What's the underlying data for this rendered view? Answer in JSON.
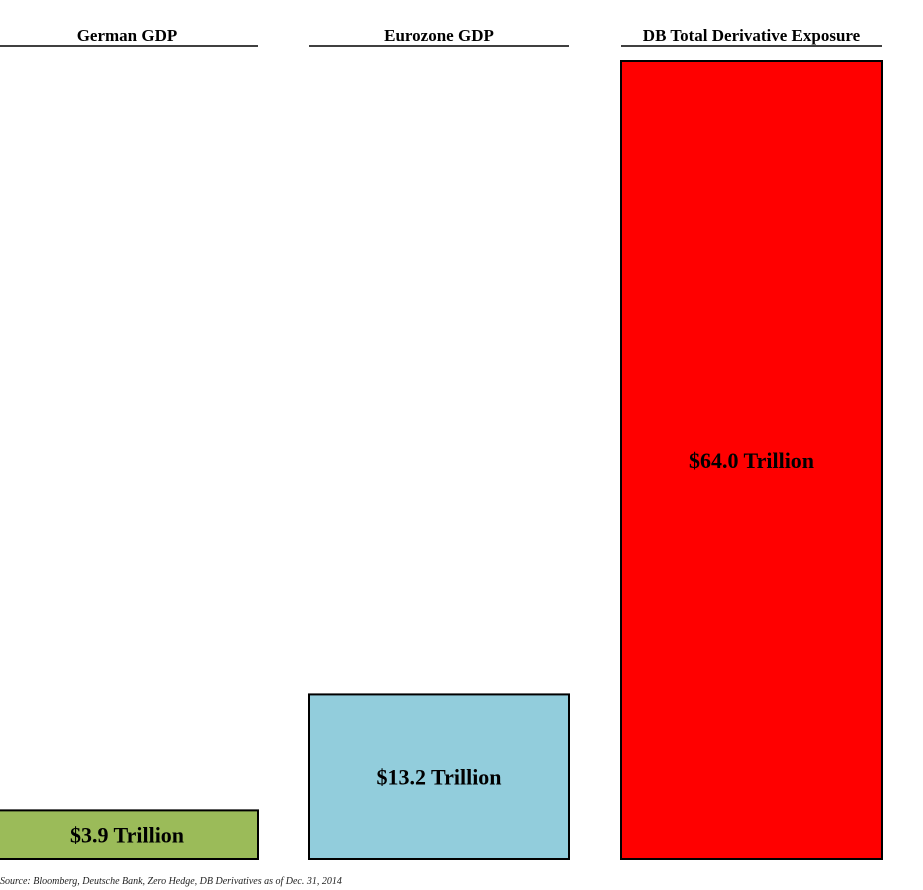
{
  "chart_data": {
    "type": "bar",
    "categories": [
      "German GDP",
      "Eurozone GDP",
      "DB Total Derivative Exposure"
    ],
    "values": [
      3.9,
      13.2,
      64.0
    ],
    "data_labels": [
      "$3.9 Trillion",
      "$13.2 Trillion",
      "$64.0 Trillion"
    ],
    "colors": [
      "#9bbb59",
      "#92cddc",
      "#ff0000"
    ],
    "unit": "Trillion USD",
    "title": "",
    "xlabel": "",
    "ylabel": "",
    "ylim": [
      0,
      64.0
    ],
    "grid": false,
    "legend": "none"
  },
  "footer": {
    "source": "Source: Bloomberg, Deutsche Bank, Zero Hedge, DB Derivatives as of  Dec. 31, 2014"
  }
}
